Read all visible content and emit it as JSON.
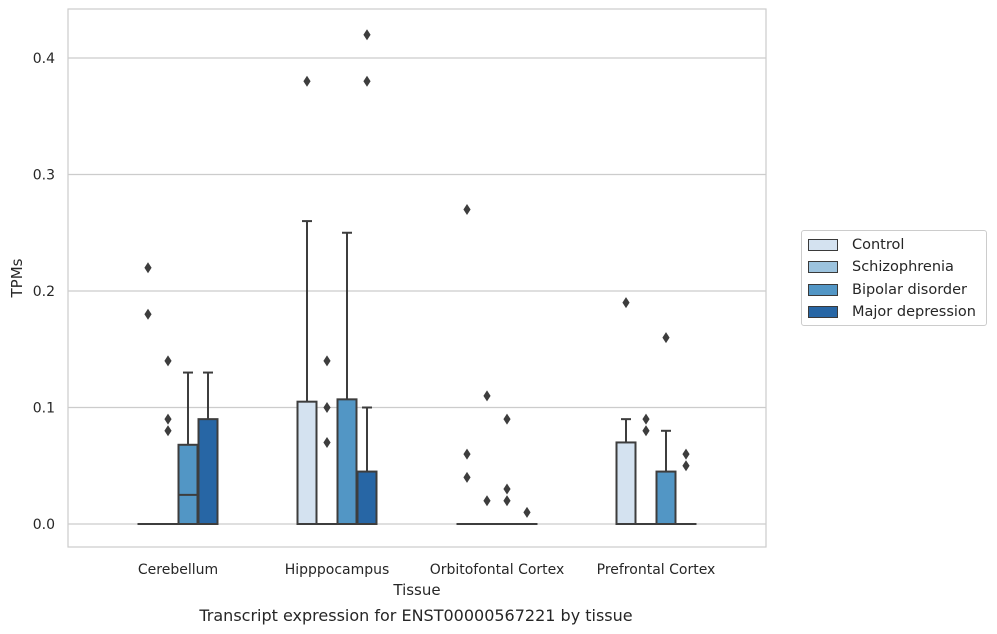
{
  "chart_data": {
    "type": "box",
    "xlabel": "Tissue",
    "ylabel": "TPMs",
    "caption": "Transcript expression for ENST00000567221 by tissue",
    "ylim": [
      -0.02,
      0.44
    ],
    "y_ticks": [
      "0.0",
      "0.1",
      "0.2",
      "0.3",
      "0.4"
    ],
    "grid": true,
    "legend_position": "right",
    "categories": [
      "Cerebellum",
      "Hipppocampus",
      "Orbitofontal Cortex",
      "Prefrontal Cortex"
    ],
    "series": [
      {
        "name": "Control",
        "color": "#d4e2f0",
        "boxes": [
          {
            "q1": 0,
            "median": 0,
            "q3": 0,
            "whisker_low": 0,
            "whisker_high": 0,
            "outliers": [
              0.22,
              0.18
            ]
          },
          {
            "q1": 0,
            "median": 0,
            "q3": 0.105,
            "whisker_low": 0,
            "whisker_high": 0.26,
            "outliers": [
              0.38
            ]
          },
          {
            "q1": 0,
            "median": 0,
            "q3": 0,
            "whisker_low": 0,
            "whisker_high": 0,
            "outliers": [
              0.27,
              0.06,
              0.04
            ]
          },
          {
            "q1": 0,
            "median": 0,
            "q3": 0.07,
            "whisker_low": 0,
            "whisker_high": 0.09,
            "outliers": [
              0.19
            ]
          }
        ]
      },
      {
        "name": "Schizophrenia",
        "color": "#9cc3de",
        "boxes": [
          {
            "q1": 0,
            "median": 0,
            "q3": 0,
            "whisker_low": 0,
            "whisker_high": 0,
            "outliers": [
              0.14,
              0.09,
              0.08
            ]
          },
          {
            "q1": 0,
            "median": 0,
            "q3": 0,
            "whisker_low": 0,
            "whisker_high": 0,
            "outliers": [
              0.14,
              0.1,
              0.07
            ]
          },
          {
            "q1": 0,
            "median": 0,
            "q3": 0,
            "whisker_low": 0,
            "whisker_high": 0,
            "outliers": [
              0.11,
              0.02
            ]
          },
          {
            "q1": 0,
            "median": 0,
            "q3": 0,
            "whisker_low": 0,
            "whisker_high": 0,
            "outliers": [
              0.09,
              0.08
            ]
          }
        ]
      },
      {
        "name": "Bipolar disorder",
        "color": "#5296c5",
        "boxes": [
          {
            "q1": 0,
            "median": 0.025,
            "q3": 0.068,
            "whisker_low": 0,
            "whisker_high": 0.13,
            "outliers": []
          },
          {
            "q1": 0,
            "median": 0,
            "q3": 0.107,
            "whisker_low": 0,
            "whisker_high": 0.25,
            "outliers": []
          },
          {
            "q1": 0,
            "median": 0,
            "q3": 0,
            "whisker_low": 0,
            "whisker_high": 0,
            "outliers": [
              0.09,
              0.03,
              0.02
            ]
          },
          {
            "q1": 0,
            "median": 0,
            "q3": 0.045,
            "whisker_low": 0,
            "whisker_high": 0.08,
            "outliers": [
              0.16
            ]
          }
        ]
      },
      {
        "name": "Major depression",
        "color": "#2766a5",
        "boxes": [
          {
            "q1": 0,
            "median": 0,
            "q3": 0.09,
            "whisker_low": 0,
            "whisker_high": 0.13,
            "outliers": []
          },
          {
            "q1": 0,
            "median": 0,
            "q3": 0.045,
            "whisker_low": 0,
            "whisker_high": 0.1,
            "outliers": [
              0.42,
              0.38
            ]
          },
          {
            "q1": 0,
            "median": 0,
            "q3": 0,
            "whisker_low": 0,
            "whisker_high": 0,
            "outliers": [
              0.01
            ]
          },
          {
            "q1": 0,
            "median": 0,
            "q3": 0,
            "whisker_low": 0,
            "whisker_high": 0,
            "outliers": [
              0.06,
              0.05
            ]
          }
        ]
      }
    ]
  }
}
